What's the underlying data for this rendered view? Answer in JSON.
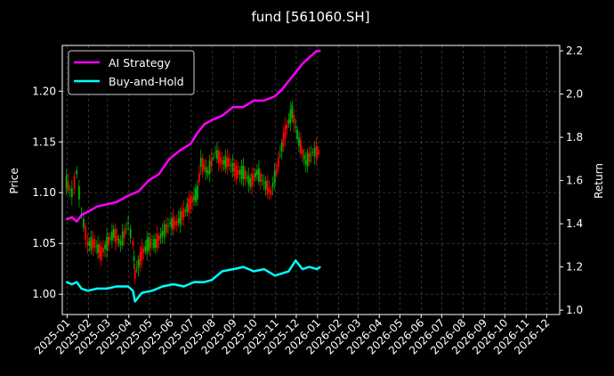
{
  "chart_data": {
    "type": "line",
    "title": "fund [561060.SH]",
    "ylabel": "Price",
    "ylabel_right": "Return",
    "grid": true,
    "legend_position": "top-left",
    "background": "#000000",
    "x_ticks": [
      "2025-01",
      "2025-02",
      "2025-03",
      "2025-04",
      "2025-05",
      "2025-06",
      "2025-07",
      "2025-08",
      "2025-09",
      "2025-10",
      "2025-11",
      "2025-12",
      "2026-01",
      "2026-02",
      "2026-03",
      "2026-04",
      "2026-05",
      "2026-06",
      "2026-07",
      "2026-08",
      "2026-09",
      "2026-10",
      "2026-11",
      "2026-12"
    ],
    "y_left": {
      "ticks": [
        "1.00",
        "1.05",
        "1.10",
        "1.15",
        "1.20"
      ],
      "range": [
        0.98,
        1.245
      ]
    },
    "y_right": {
      "ticks": [
        "1.0",
        "1.2",
        "1.4",
        "1.6",
        "1.8",
        "2.0",
        "2.2"
      ],
      "range": [
        0.98,
        2.225
      ]
    },
    "x_range": [
      "2024-12-25",
      "2026-12-20"
    ],
    "series": [
      {
        "name": "AI Strategy",
        "axis": "right",
        "color": "#ff00ff",
        "x": [
          "2024-12-31",
          "2025-01-08",
          "2025-01-15",
          "2025-01-22",
          "2025-02-03",
          "2025-02-14",
          "2025-02-28",
          "2025-03-14",
          "2025-03-31",
          "2025-04-15",
          "2025-04-30",
          "2025-05-15",
          "2025-05-30",
          "2025-06-15",
          "2025-06-30",
          "2025-07-10",
          "2025-07-20",
          "2025-07-31",
          "2025-08-15",
          "2025-08-31",
          "2025-09-15",
          "2025-09-30",
          "2025-10-15",
          "2025-10-31",
          "2025-11-10",
          "2025-11-20",
          "2025-11-30",
          "2025-12-10",
          "2025-12-20",
          "2025-12-31",
          "2026-01-05"
        ],
        "values": [
          1.42,
          1.43,
          1.41,
          1.44,
          1.46,
          1.48,
          1.49,
          1.5,
          1.53,
          1.55,
          1.6,
          1.63,
          1.7,
          1.74,
          1.77,
          1.82,
          1.86,
          1.88,
          1.9,
          1.94,
          1.94,
          1.97,
          1.97,
          1.99,
          2.02,
          2.06,
          2.1,
          2.14,
          2.17,
          2.2,
          2.2
        ]
      },
      {
        "name": "Buy-and-Hold",
        "axis": "right",
        "color": "#00ffff",
        "x": [
          "2024-12-31",
          "2025-01-08",
          "2025-01-15",
          "2025-01-22",
          "2025-01-31",
          "2025-02-14",
          "2025-02-28",
          "2025-03-14",
          "2025-03-31",
          "2025-04-07",
          "2025-04-10",
          "2025-04-20",
          "2025-05-05",
          "2025-05-20",
          "2025-06-05",
          "2025-06-20",
          "2025-07-05",
          "2025-07-20",
          "2025-07-31",
          "2025-08-15",
          "2025-08-31",
          "2025-09-15",
          "2025-09-30",
          "2025-10-15",
          "2025-10-31",
          "2025-11-10",
          "2025-11-20",
          "2025-11-30",
          "2025-12-10",
          "2025-12-20",
          "2025-12-31",
          "2026-01-05"
        ],
        "values": [
          1.13,
          1.12,
          1.13,
          1.1,
          1.09,
          1.1,
          1.1,
          1.11,
          1.11,
          1.09,
          1.04,
          1.08,
          1.09,
          1.11,
          1.12,
          1.11,
          1.13,
          1.13,
          1.14,
          1.18,
          1.19,
          1.2,
          1.18,
          1.19,
          1.16,
          1.17,
          1.18,
          1.23,
          1.19,
          1.2,
          1.19,
          1.2
        ]
      }
    ],
    "price_series": {
      "axis": "left",
      "up_color": "#00b000",
      "down_color": "#ff0000",
      "x": [
        "2024-12-31",
        "2025-01-08",
        "2025-01-15",
        "2025-01-22",
        "2025-01-31",
        "2025-02-10",
        "2025-02-20",
        "2025-02-28",
        "2025-03-10",
        "2025-03-20",
        "2025-03-31",
        "2025-04-07",
        "2025-04-10",
        "2025-04-20",
        "2025-04-30",
        "2025-05-10",
        "2025-05-20",
        "2025-05-31",
        "2025-06-10",
        "2025-06-20",
        "2025-06-30",
        "2025-07-10",
        "2025-07-15",
        "2025-07-25",
        "2025-08-05",
        "2025-08-15",
        "2025-08-25",
        "2025-09-05",
        "2025-09-15",
        "2025-09-25",
        "2025-10-05",
        "2025-10-15",
        "2025-10-25",
        "2025-11-05",
        "2025-11-15",
        "2025-11-25",
        "2025-12-05",
        "2025-12-15",
        "2025-12-25",
        "2026-01-05"
      ],
      "values": [
        1.11,
        1.1,
        1.12,
        1.08,
        1.05,
        1.05,
        1.04,
        1.05,
        1.06,
        1.05,
        1.07,
        1.05,
        1.02,
        1.04,
        1.05,
        1.05,
        1.06,
        1.07,
        1.07,
        1.08,
        1.09,
        1.1,
        1.13,
        1.12,
        1.14,
        1.13,
        1.13,
        1.12,
        1.12,
        1.11,
        1.12,
        1.11,
        1.1,
        1.13,
        1.16,
        1.18,
        1.15,
        1.13,
        1.14,
        1.14
      ]
    }
  }
}
